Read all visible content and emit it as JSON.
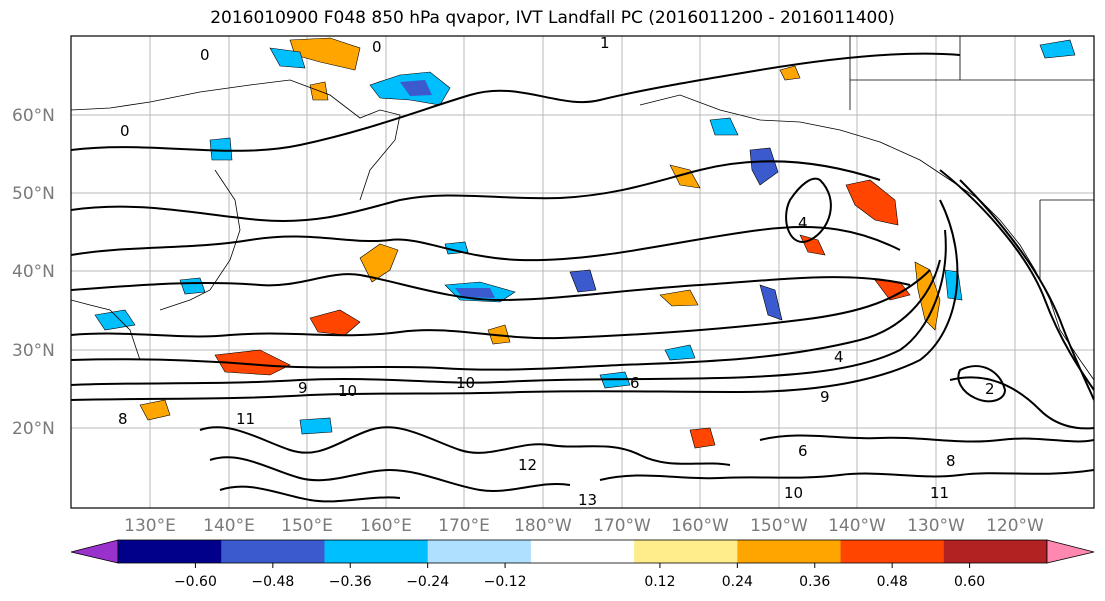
{
  "title": "2016010900 F048 850 hPa qvapor, IVT Landfall PC (2016011200 - 2016011400)",
  "map": {
    "lat_labels": [
      "60°N",
      "50°N",
      "40°N",
      "30°N",
      "20°N"
    ],
    "lon_labels": [
      "130°E",
      "140°E",
      "150°E",
      "160°E",
      "170°E",
      "180°W",
      "170°W",
      "160°W",
      "150°W",
      "140°W",
      "130°W",
      "120°W"
    ],
    "contour_labels": [
      "0",
      "1",
      "0",
      "0",
      "4",
      "4",
      "2",
      "6",
      "8",
      "9",
      "10",
      "10",
      "11",
      "13",
      "10",
      "11",
      "6",
      "8",
      "9",
      "12"
    ],
    "fill_colors": {
      "neg_strong": "#00008b",
      "neg_mid": "#3a5acd",
      "neg_light": "#00bfff",
      "neg_pale": "#b0e0ff",
      "pos_pale": "#ffec8b",
      "pos_light": "#ffa500",
      "pos_mid": "#ff4500",
      "pos_strong": "#b22222"
    }
  },
  "colorbar": {
    "ticks": [
      "−0.60",
      "−0.48",
      "−0.36",
      "−0.24",
      "−0.12",
      "0.12",
      "0.24",
      "0.36",
      "0.48",
      "0.60"
    ],
    "colors": [
      "#9932cc",
      "#00008b",
      "#3a5acd",
      "#00bfff",
      "#b0e0ff",
      "#ffffff",
      "#ffec8b",
      "#ffa500",
      "#ff4500",
      "#b22222",
      "#ff88b0"
    ]
  }
}
